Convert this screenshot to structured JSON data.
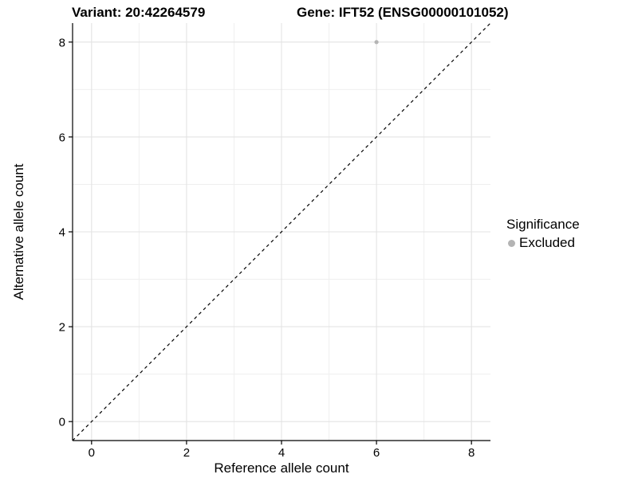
{
  "chart_data": {
    "type": "scatter",
    "title_left": "Variant: 20:42264579",
    "title_right": "Gene: IFT52 (ENSG00000101052)",
    "xlabel": "Reference allele count",
    "ylabel": "Alternative allele count",
    "xlim": [
      -0.4,
      8.4
    ],
    "ylim": [
      -0.4,
      8.4
    ],
    "x_major_ticks": [
      0,
      2,
      4,
      6,
      8
    ],
    "y_major_ticks": [
      0,
      2,
      4,
      6,
      8
    ],
    "x_minor_gridlines": [
      1,
      3,
      5,
      7
    ],
    "y_minor_gridlines": [
      1,
      3,
      5,
      7
    ],
    "grid": true,
    "points": [
      {
        "x": 6,
        "y": 8,
        "series": "Excluded"
      }
    ],
    "identity_line": {
      "slope": 1,
      "intercept": 0,
      "style": "dashed"
    },
    "legend": {
      "title": "Significance",
      "position": "right",
      "entries": [
        {
          "label": "Excluded",
          "color": "#b4b4b4"
        }
      ]
    },
    "colors": {
      "point": "#b4b4b4",
      "grid_major": "#e3e3e3",
      "grid_minor": "#efefef",
      "axis": "#000000",
      "dashed_line": "#000000",
      "background": "#ffffff"
    }
  }
}
